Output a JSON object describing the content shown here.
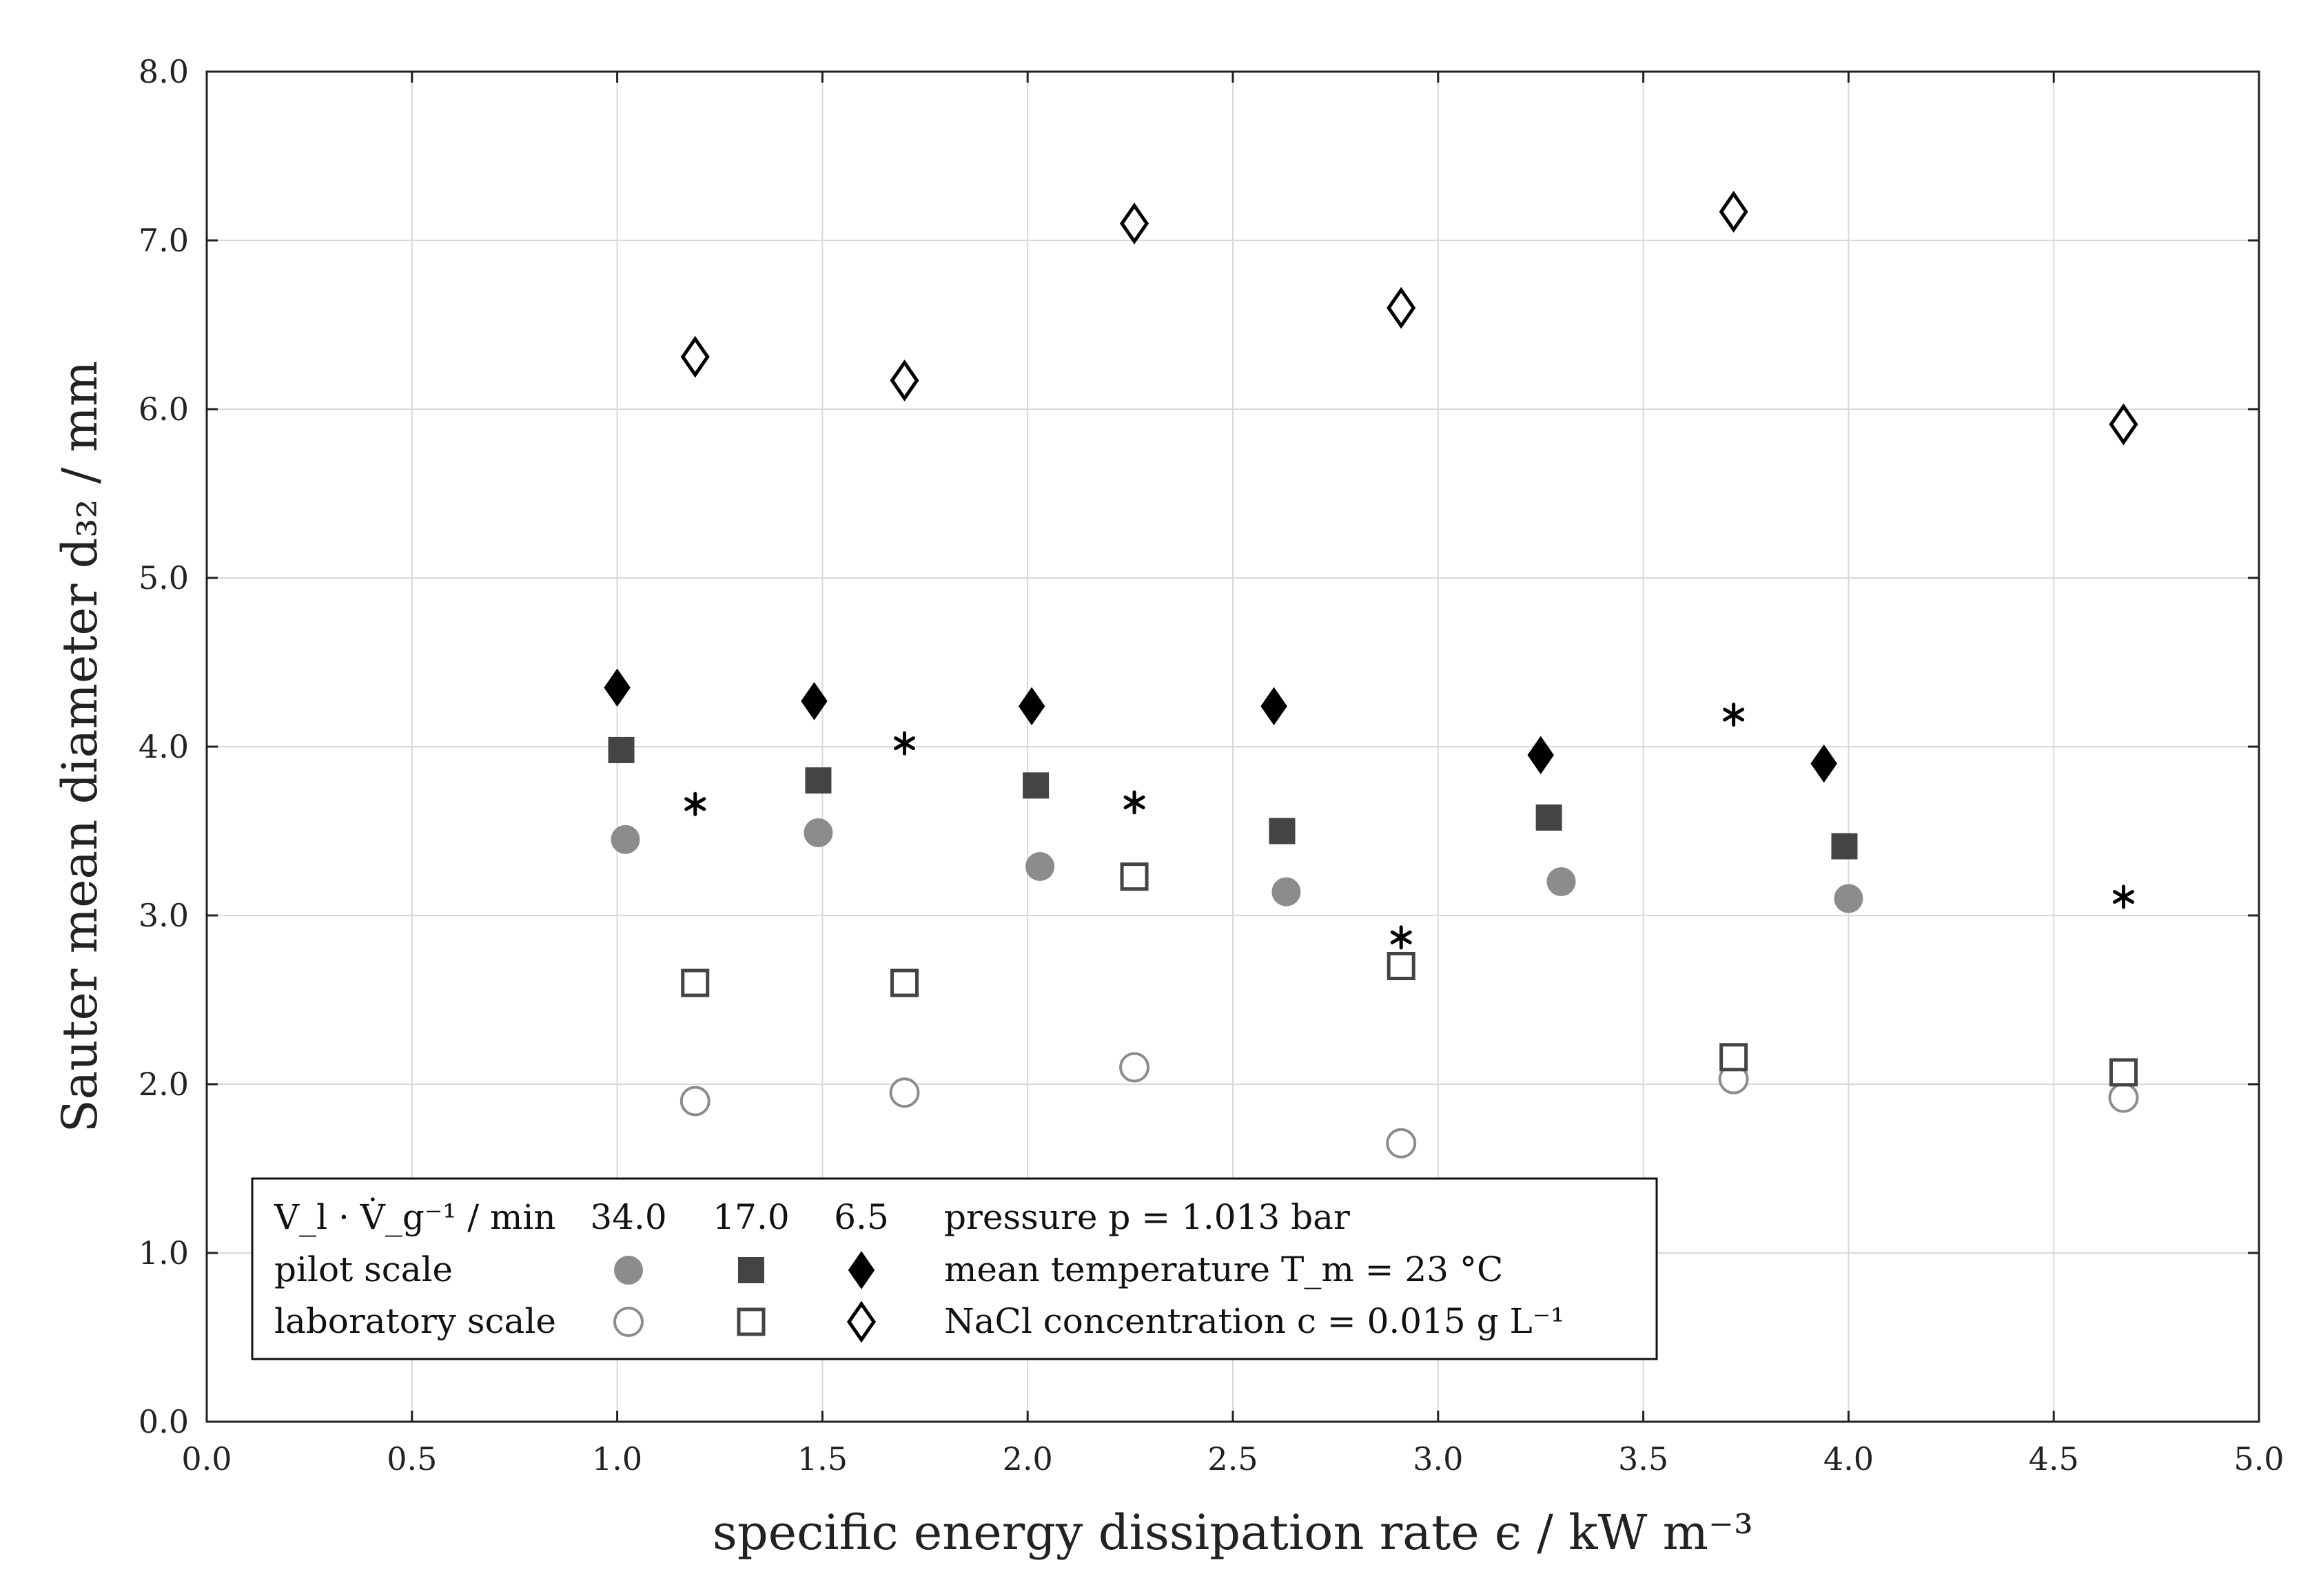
{
  "chart_data": {
    "type": "scatter",
    "xlabel": "specific energy dissipation rate ϵ / kW m⁻³",
    "ylabel": "Sauter mean diameter d₃₂ / mm",
    "xlim": [
      0,
      5
    ],
    "ylim": [
      0,
      8
    ],
    "grid": true,
    "x_ticks": [
      "0.0",
      "0.5",
      "1.0",
      "1.5",
      "2.0",
      "2.5",
      "3.0",
      "3.5",
      "4.0",
      "4.5",
      "5.0"
    ],
    "y_ticks": [
      "0.0",
      "1.0",
      "2.0",
      "3.0",
      "4.0",
      "5.0",
      "6.0",
      "7.0",
      "8.0"
    ],
    "series": [
      {
        "name": "pilot scale 34.0 min",
        "marker": "filled-circle",
        "color": "#8c8c8c",
        "x": [
          1.02,
          1.49,
          2.03,
          2.63,
          3.3,
          4.0
        ],
        "y": [
          3.45,
          3.49,
          3.29,
          3.14,
          3.2,
          3.1
        ]
      },
      {
        "name": "pilot scale 17.0 min",
        "marker": "filled-square",
        "color": "#444444",
        "x": [
          1.01,
          1.49,
          2.02,
          2.62,
          3.27,
          3.99
        ],
        "y": [
          3.98,
          3.8,
          3.77,
          3.5,
          3.58,
          3.41
        ]
      },
      {
        "name": "pilot scale 6.5 min",
        "marker": "filled-diamond",
        "color": "#000000",
        "x": [
          1.0,
          1.48,
          2.01,
          2.6,
          3.25,
          3.94
        ],
        "y": [
          4.35,
          4.27,
          4.24,
          4.24,
          3.95,
          3.9
        ]
      },
      {
        "name": "laboratory scale 34.0 min",
        "marker": "open-circle",
        "color": "#8c8c8c",
        "x": [
          1.19,
          1.7,
          2.26,
          2.91,
          3.72,
          4.67
        ],
        "y": [
          1.9,
          1.95,
          2.1,
          1.65,
          2.03,
          1.92
        ]
      },
      {
        "name": "laboratory scale 17.0 min",
        "marker": "open-square",
        "color": "#444444",
        "x": [
          1.19,
          1.7,
          2.26,
          2.91,
          3.72,
          4.67
        ],
        "y": [
          2.6,
          2.6,
          3.23,
          2.7,
          2.16,
          2.07
        ]
      },
      {
        "name": "laboratory scale 6.5 min",
        "marker": "open-diamond",
        "color": "#000000",
        "x": [
          1.19,
          1.7,
          2.26,
          2.91,
          3.72,
          4.67
        ],
        "y": [
          6.31,
          6.17,
          7.1,
          6.6,
          7.17,
          5.91
        ]
      },
      {
        "name": "asterisk series",
        "marker": "asterisk",
        "color": "#000000",
        "x": [
          1.19,
          1.7,
          2.26,
          2.91,
          3.72,
          4.67
        ],
        "y": [
          3.66,
          4.02,
          3.67,
          2.87,
          4.19,
          3.11
        ]
      }
    ],
    "legend": {
      "position": "bottom-left",
      "header_label": "V_l · V̇_g⁻¹ / min",
      "columns": [
        "34.0",
        "17.0",
        "6.5"
      ],
      "rows": [
        "pilot scale",
        "laboratory scale"
      ],
      "notes": [
        "pressure p = 1.013 bar",
        "mean temperature T_m = 23 °C",
        "NaCl concentration c = 0.015 g L⁻¹"
      ]
    }
  }
}
